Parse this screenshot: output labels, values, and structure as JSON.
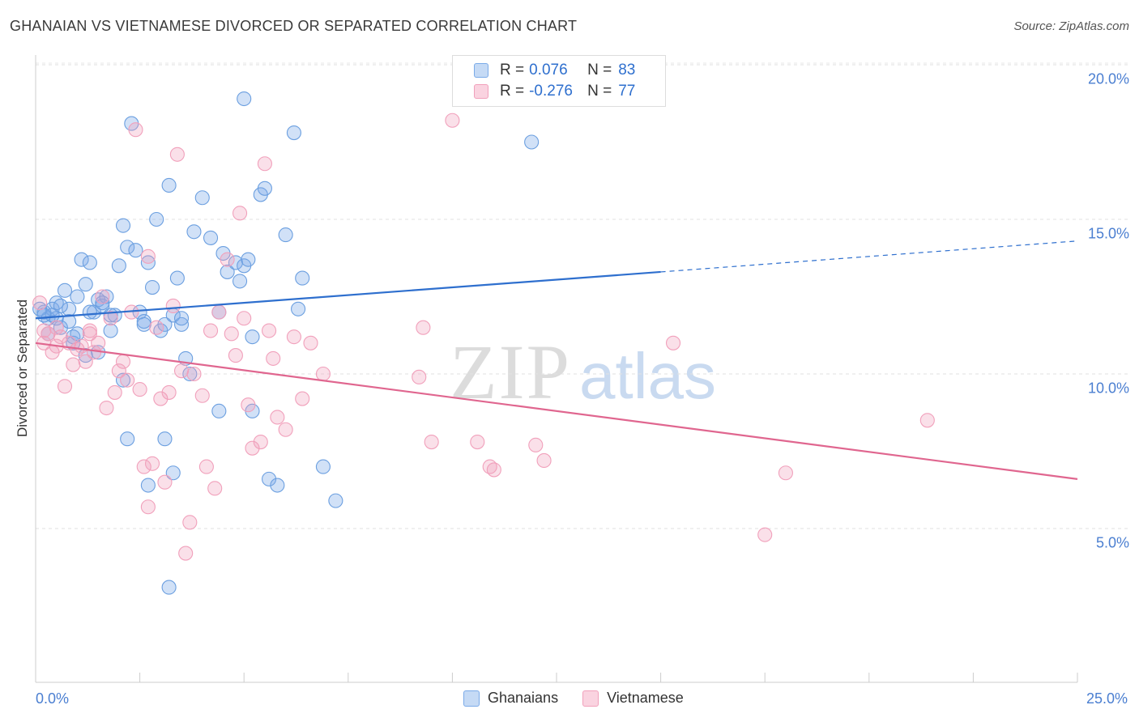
{
  "title": "GHANAIAN VS VIETNAMESE DIVORCED OR SEPARATED CORRELATION CHART",
  "source": "Source: ZipAtlas.com",
  "watermark": {
    "zip": "ZIP",
    "atlas": "atlas"
  },
  "legend_top": {
    "rows": [
      {
        "r_label": "R =",
        "r_value": "0.076",
        "n_label": "N =",
        "n_value": "83",
        "color": "#7aaae8"
      },
      {
        "r_label": "R =",
        "r_value": "-0.276",
        "n_label": "N =",
        "n_value": "77",
        "color": "#f1a0bb"
      }
    ]
  },
  "legend_bottom": [
    {
      "label": "Ghanaians",
      "color": "#7aaae8"
    },
    {
      "label": "Vietnamese",
      "color": "#f1a0bb"
    }
  ],
  "chart_data": {
    "type": "scatter",
    "ylabel": "Divorced or Separated",
    "xlabel": "",
    "x_tick_labels": [
      "0.0%",
      "25.0%"
    ],
    "y_tick_labels": [
      "5.0%",
      "10.0%",
      "15.0%",
      "20.0%"
    ],
    "y_ticks": [
      5,
      10,
      15,
      20
    ],
    "xlim": [
      0,
      25
    ],
    "ylim": [
      0,
      21
    ],
    "grid": "horizontal dashed",
    "legend_placement": "top-center",
    "series": [
      {
        "name": "Ghanaians",
        "color": "#6b9fe0",
        "line_color": "#2e6fce",
        "trend": {
          "x0": 0,
          "y0": 11.8,
          "x_solid_end": 15,
          "y_solid_end": 13.3,
          "x1": 25,
          "y1": 14.3
        },
        "points": [
          [
            0.2,
            12.0
          ],
          [
            0.3,
            11.8
          ],
          [
            0.4,
            12.1
          ],
          [
            0.5,
            12.3
          ],
          [
            0.6,
            11.5
          ],
          [
            0.7,
            12.7
          ],
          [
            0.8,
            12.1
          ],
          [
            0.9,
            11.2
          ],
          [
            1.0,
            12.5
          ],
          [
            1.1,
            13.7
          ],
          [
            1.2,
            12.9
          ],
          [
            1.3,
            13.6
          ],
          [
            1.4,
            12.0
          ],
          [
            1.5,
            12.4
          ],
          [
            1.6,
            12.2
          ],
          [
            1.7,
            12.5
          ],
          [
            1.8,
            11.4
          ],
          [
            1.9,
            11.9
          ],
          [
            2.0,
            13.5
          ],
          [
            2.1,
            14.8
          ],
          [
            2.2,
            14.1
          ],
          [
            2.3,
            18.1
          ],
          [
            2.4,
            14.0
          ],
          [
            2.5,
            12.0
          ],
          [
            2.6,
            11.7
          ],
          [
            2.7,
            13.6
          ],
          [
            2.8,
            12.8
          ],
          [
            2.9,
            15.0
          ],
          [
            3.0,
            11.4
          ],
          [
            3.1,
            11.6
          ],
          [
            3.2,
            16.1
          ],
          [
            3.3,
            11.9
          ],
          [
            3.4,
            13.1
          ],
          [
            3.5,
            11.6
          ],
          [
            3.6,
            10.5
          ],
          [
            3.7,
            10.0
          ],
          [
            3.8,
            14.6
          ],
          [
            4.0,
            15.7
          ],
          [
            4.2,
            14.4
          ],
          [
            4.4,
            12.0
          ],
          [
            4.5,
            13.9
          ],
          [
            4.6,
            13.3
          ],
          [
            4.8,
            13.6
          ],
          [
            4.9,
            13.0
          ],
          [
            5.0,
            13.5
          ],
          [
            5.1,
            13.7
          ],
          [
            5.2,
            11.2
          ],
          [
            5.4,
            15.8
          ],
          [
            5.5,
            16.0
          ],
          [
            5.6,
            6.6
          ],
          [
            5.8,
            6.4
          ],
          [
            6.0,
            14.5
          ],
          [
            6.2,
            17.8
          ],
          [
            6.3,
            12.1
          ],
          [
            6.4,
            13.1
          ],
          [
            6.9,
            7.0
          ],
          [
            7.2,
            5.9
          ],
          [
            11.9,
            17.5
          ],
          [
            5.0,
            18.9
          ],
          [
            3.2,
            3.1
          ],
          [
            2.2,
            7.9
          ],
          [
            3.1,
            7.9
          ],
          [
            3.3,
            6.8
          ],
          [
            2.7,
            6.4
          ],
          [
            4.4,
            8.8
          ],
          [
            5.2,
            8.8
          ],
          [
            0.1,
            12.1
          ],
          [
            0.3,
            11.3
          ],
          [
            0.5,
            11.8
          ],
          [
            0.9,
            11.0
          ],
          [
            1.2,
            10.6
          ],
          [
            1.5,
            10.7
          ],
          [
            1.6,
            12.3
          ],
          [
            1.8,
            11.9
          ],
          [
            2.1,
            9.8
          ],
          [
            0.6,
            12.2
          ],
          [
            0.4,
            11.9
          ],
          [
            1.0,
            11.3
          ],
          [
            1.3,
            12.0
          ],
          [
            2.6,
            11.6
          ],
          [
            3.5,
            11.8
          ],
          [
            0.8,
            11.7
          ],
          [
            0.2,
            11.9
          ]
        ]
      },
      {
        "name": "Vietnamese",
        "color": "#f1a0bb",
        "line_color": "#e0668f",
        "trend": {
          "x0": 0,
          "y0": 11.0,
          "x_solid_end": 25,
          "y_solid_end": 6.6,
          "x1": 25,
          "y1": 6.6
        },
        "points": [
          [
            0.1,
            12.3
          ],
          [
            0.2,
            11.0
          ],
          [
            0.3,
            11.3
          ],
          [
            0.4,
            10.7
          ],
          [
            0.5,
            11.5
          ],
          [
            0.6,
            11.2
          ],
          [
            0.7,
            9.6
          ],
          [
            0.8,
            11.0
          ],
          [
            0.9,
            10.3
          ],
          [
            1.0,
            10.8
          ],
          [
            1.1,
            10.9
          ],
          [
            1.2,
            10.4
          ],
          [
            1.3,
            11.4
          ],
          [
            1.4,
            10.7
          ],
          [
            1.5,
            11.0
          ],
          [
            1.6,
            12.5
          ],
          [
            1.7,
            8.9
          ],
          [
            1.8,
            11.8
          ],
          [
            1.9,
            9.4
          ],
          [
            2.0,
            10.1
          ],
          [
            2.1,
            10.4
          ],
          [
            2.2,
            9.8
          ],
          [
            2.3,
            12.0
          ],
          [
            2.4,
            17.9
          ],
          [
            2.5,
            9.5
          ],
          [
            2.6,
            7.0
          ],
          [
            2.7,
            5.7
          ],
          [
            2.8,
            7.1
          ],
          [
            2.9,
            11.5
          ],
          [
            3.0,
            9.2
          ],
          [
            3.1,
            6.5
          ],
          [
            3.2,
            9.4
          ],
          [
            3.3,
            12.2
          ],
          [
            3.4,
            17.1
          ],
          [
            3.5,
            10.1
          ],
          [
            3.6,
            4.2
          ],
          [
            3.7,
            5.2
          ],
          [
            3.8,
            10.0
          ],
          [
            4.0,
            9.3
          ],
          [
            4.1,
            7.0
          ],
          [
            4.2,
            11.4
          ],
          [
            4.3,
            6.3
          ],
          [
            4.4,
            12.0
          ],
          [
            4.6,
            13.7
          ],
          [
            4.7,
            11.3
          ],
          [
            4.8,
            10.6
          ],
          [
            4.9,
            15.2
          ],
          [
            5.0,
            11.8
          ],
          [
            5.1,
            9.0
          ],
          [
            5.2,
            7.6
          ],
          [
            5.4,
            7.8
          ],
          [
            5.5,
            16.8
          ],
          [
            5.6,
            11.4
          ],
          [
            5.7,
            10.5
          ],
          [
            5.8,
            8.6
          ],
          [
            6.0,
            8.2
          ],
          [
            6.2,
            11.2
          ],
          [
            6.4,
            9.2
          ],
          [
            6.6,
            11.0
          ],
          [
            6.9,
            10.0
          ],
          [
            9.2,
            9.9
          ],
          [
            9.3,
            11.5
          ],
          [
            9.5,
            7.8
          ],
          [
            10.0,
            18.2
          ],
          [
            10.6,
            7.8
          ],
          [
            11.0,
            6.9
          ],
          [
            12.0,
            7.7
          ],
          [
            12.2,
            7.2
          ],
          [
            15.3,
            11.0
          ],
          [
            17.5,
            4.8
          ],
          [
            18.0,
            6.8
          ],
          [
            21.4,
            8.5
          ],
          [
            10.9,
            7.0
          ],
          [
            1.3,
            11.3
          ],
          [
            0.5,
            10.9
          ],
          [
            2.7,
            13.8
          ],
          [
            0.2,
            11.4
          ]
        ]
      }
    ]
  }
}
